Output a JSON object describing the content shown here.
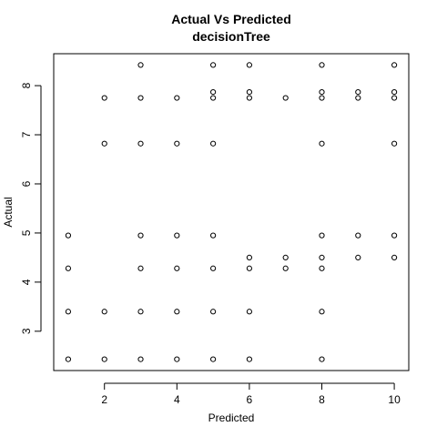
{
  "chart_data": {
    "type": "scatter",
    "title": "Actual Vs Predicted",
    "subtitle": "decisionTree",
    "xlabel": "Predicted",
    "ylabel": "Actual",
    "xlim": [
      0.6,
      10.4
    ],
    "ylim": [
      2.2,
      8.65
    ],
    "xticks": [
      2,
      4,
      6,
      8,
      10
    ],
    "yticks": [
      3,
      4,
      5,
      6,
      7,
      8
    ],
    "grid": false,
    "legend": "none",
    "marker": "open-circle",
    "points": [
      [
        1,
        4.95
      ],
      [
        1,
        4.28
      ],
      [
        1,
        3.4
      ],
      [
        1,
        2.43
      ],
      [
        2,
        7.75
      ],
      [
        2,
        6.82
      ],
      [
        2,
        3.4
      ],
      [
        2,
        2.43
      ],
      [
        3,
        8.42
      ],
      [
        3,
        7.75
      ],
      [
        3,
        6.82
      ],
      [
        3,
        4.95
      ],
      [
        3,
        4.28
      ],
      [
        3,
        3.4
      ],
      [
        3,
        2.43
      ],
      [
        4,
        7.75
      ],
      [
        4,
        6.82
      ],
      [
        4,
        4.95
      ],
      [
        4,
        4.28
      ],
      [
        4,
        3.4
      ],
      [
        4,
        2.43
      ],
      [
        5,
        8.42
      ],
      [
        5,
        7.87
      ],
      [
        5,
        7.75
      ],
      [
        5,
        6.82
      ],
      [
        5,
        4.95
      ],
      [
        5,
        4.28
      ],
      [
        5,
        3.4
      ],
      [
        5,
        2.43
      ],
      [
        6,
        8.42
      ],
      [
        6,
        7.87
      ],
      [
        6,
        7.75
      ],
      [
        6,
        4.5
      ],
      [
        6,
        4.28
      ],
      [
        6,
        3.4
      ],
      [
        6,
        2.43
      ],
      [
        7,
        7.75
      ],
      [
        7,
        4.5
      ],
      [
        7,
        4.28
      ],
      [
        8,
        8.42
      ],
      [
        8,
        7.87
      ],
      [
        8,
        7.75
      ],
      [
        8,
        6.82
      ],
      [
        8,
        4.95
      ],
      [
        8,
        4.5
      ],
      [
        8,
        4.28
      ],
      [
        8,
        3.4
      ],
      [
        8,
        2.43
      ],
      [
        9,
        7.87
      ],
      [
        9,
        7.75
      ],
      [
        9,
        4.95
      ],
      [
        9,
        4.5
      ],
      [
        10,
        8.42
      ],
      [
        10,
        7.87
      ],
      [
        10,
        7.75
      ],
      [
        10,
        6.82
      ],
      [
        10,
        4.95
      ],
      [
        10,
        4.5
      ]
    ]
  }
}
